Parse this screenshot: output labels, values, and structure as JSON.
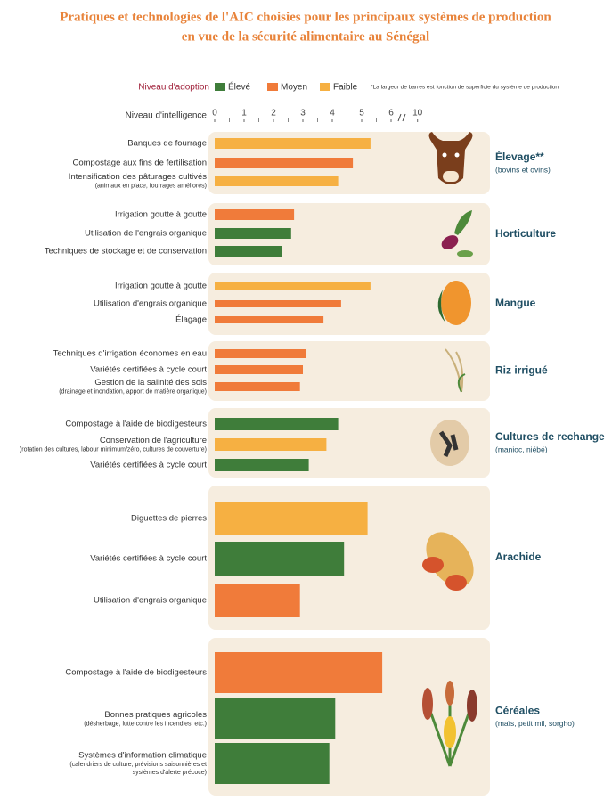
{
  "chart_data": {
    "type": "bar",
    "title": [
      "Pratiques et technologies de l'AIC choisies pour les principaux systèmes de production",
      "en vue de la sécurité alimentaire au Sénégal"
    ],
    "legend_title": "Niveau d'adoption",
    "legend": [
      {
        "name": "Élevé",
        "color": "#3f7d3a"
      },
      {
        "name": "Moyen",
        "color": "#f07b3a"
      },
      {
        "name": "Faible",
        "color": "#f6b042"
      }
    ],
    "footnote": "*La largeur de barres est fonction de superficie du système de production",
    "x_label": "Niveau d'intelligence",
    "xlim": [
      0,
      10
    ],
    "xticks": [
      0,
      1,
      2,
      3,
      4,
      5,
      6,
      10
    ],
    "axis_break": true,
    "groups": [
      {
        "name": "Élevage**",
        "subtitle": "(bovins et ovins)",
        "items": [
          {
            "label": "Banques de fourrage",
            "note": [],
            "value": 5.3,
            "color": "#f6b042"
          },
          {
            "label": "Compostage aux fins de fertilisation",
            "note": [],
            "value": 4.7,
            "color": "#f07b3a"
          },
          {
            "label": "Intensification des pâturages cultivés",
            "note": [
              "(animaux en place, fourrages améliorés)"
            ],
            "value": 4.2,
            "color": "#f6b042"
          }
        ]
      },
      {
        "name": "Horticulture",
        "subtitle": null,
        "items": [
          {
            "label": "Irrigation goutte à goutte",
            "note": [],
            "value": 2.7,
            "color": "#f07b3a"
          },
          {
            "label": "Utilisation de l'engrais organique",
            "note": [],
            "value": 2.6,
            "color": "#3f7d3a"
          },
          {
            "label": "Techniques de stockage et de conservation",
            "note": [],
            "value": 2.3,
            "color": "#3f7d3a"
          }
        ]
      },
      {
        "name": "Mangue",
        "subtitle": null,
        "items": [
          {
            "label": "Irrigation goutte à goutte",
            "note": [],
            "value": 5.3,
            "color": "#f6b042"
          },
          {
            "label": "Utilisation d'engrais organique",
            "note": [],
            "value": 4.3,
            "color": "#f07b3a"
          },
          {
            "label": "Élagage",
            "note": [],
            "value": 3.7,
            "color": "#f07b3a"
          }
        ]
      },
      {
        "name": "Riz irrigué",
        "subtitle": null,
        "items": [
          {
            "label": "Techniques d'irrigation économes en eau",
            "note": [],
            "value": 3.1,
            "color": "#f07b3a"
          },
          {
            "label": "Variétés certifiées à cycle court",
            "note": [],
            "value": 3.0,
            "color": "#f07b3a"
          },
          {
            "label": "Gestion de la salinité des sols",
            "note": [
              "(drainage et inondation, apport de matière organique)"
            ],
            "value": 2.9,
            "color": "#f07b3a"
          }
        ]
      },
      {
        "name": "Cultures de rechange",
        "subtitle": "(manioc, niébé)",
        "items": [
          {
            "label": "Compostage à l'aide de biodigesteurs",
            "note": [],
            "value": 4.2,
            "color": "#3f7d3a"
          },
          {
            "label": "Conservation de l'agriculture",
            "note": [
              "(rotation des cultures, labour minimum/zéro, cultures de couverture)"
            ],
            "value": 3.8,
            "color": "#f6b042"
          },
          {
            "label": "Variétés certifiées à cycle court",
            "note": [],
            "value": 3.2,
            "color": "#3f7d3a"
          }
        ]
      },
      {
        "name": "Arachide",
        "subtitle": null,
        "items": [
          {
            "label": "Diguettes de pierres",
            "note": [],
            "value": 5.2,
            "color": "#f6b042"
          },
          {
            "label": "Variétés certifiées à cycle court",
            "note": [],
            "value": 4.4,
            "color": "#3f7d3a"
          },
          {
            "label": "Utilisation d'engrais organique",
            "note": [],
            "value": 2.9,
            "color": "#f07b3a"
          }
        ]
      },
      {
        "name": "Céréales",
        "subtitle": "(maïs, petit mil, sorgho)",
        "items": [
          {
            "label": "Compostage à l'aide de biodigesteurs",
            "note": [],
            "value": 5.7,
            "color": "#f07b3a"
          },
          {
            "label": "Bonnes pratiques agricoles",
            "note": [
              "(désherbage, lutte contre les incendies, etc.)"
            ],
            "value": 4.1,
            "color": "#3f7d3a"
          },
          {
            "label": "Systèmes d'information climatique",
            "note": [
              "(calendriers de culture, prévisions saisonnières et",
              "systèmes d'alerte précoce)"
            ],
            "value": 3.9,
            "color": "#3f7d3a"
          }
        ]
      }
    ]
  }
}
